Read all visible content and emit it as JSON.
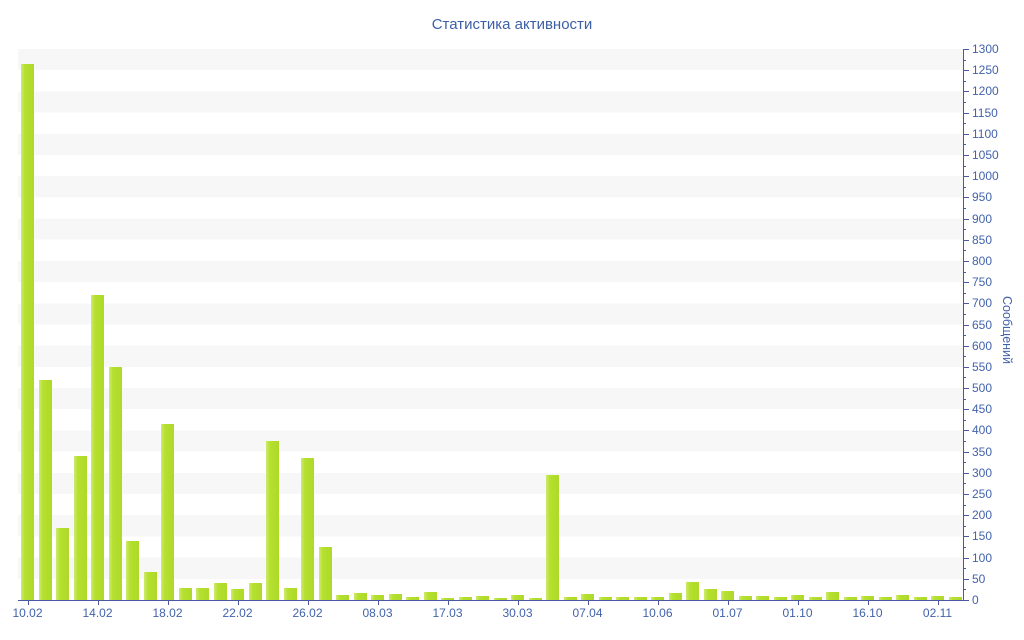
{
  "chart_data": {
    "type": "bar",
    "title": "Статистика активности",
    "xlabel": "",
    "ylabel": "Сообщений",
    "legend": "none",
    "grid": "horizontal-stripes-per-50-units",
    "legend_position": "none",
    "ylim": [
      0,
      1300
    ],
    "ytick_step": 50,
    "yminor_tick_step": 25,
    "ytick_labels": [
      0,
      50,
      100,
      150,
      200,
      250,
      300,
      350,
      400,
      450,
      500,
      550,
      600,
      650,
      700,
      750,
      800,
      850,
      900,
      950,
      1000,
      1050,
      1100,
      1150,
      1200,
      1250,
      1300
    ],
    "categories": [
      "10.02",
      "14.02",
      "18.02",
      "22.02",
      "26.02",
      "08.03",
      "17.03",
      "30.03",
      "07.04",
      "10.06",
      "01.07",
      "01.10",
      "16.10",
      "02.11"
    ],
    "label_every_n_bars": 4,
    "values": [
      1265,
      520,
      170,
      340,
      720,
      550,
      140,
      65,
      415,
      28,
      28,
      40,
      26,
      40,
      375,
      28,
      335,
      125,
      12,
      16,
      12,
      15,
      8,
      20,
      5,
      7,
      10,
      5,
      12,
      5,
      295,
      8,
      15,
      8,
      6,
      8,
      8,
      17,
      42,
      27,
      22,
      10,
      10,
      6,
      12,
      7,
      18,
      6,
      9,
      7,
      13,
      7,
      10,
      7
    ],
    "colors": {
      "bar": "#b6e02f",
      "bar_edge_light": "#cdeb6d",
      "axis_line": "#4b57a3",
      "tick_label": "#4262ac",
      "title": "#3d5fa6",
      "stripe": "#f7f7f7",
      "background": "#ffffff"
    }
  }
}
